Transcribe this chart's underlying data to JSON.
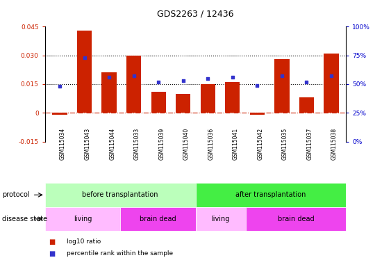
{
  "title": "GDS2263 / 12436",
  "samples": [
    "GSM115034",
    "GSM115043",
    "GSM115044",
    "GSM115033",
    "GSM115039",
    "GSM115040",
    "GSM115036",
    "GSM115041",
    "GSM115042",
    "GSM115035",
    "GSM115037",
    "GSM115038"
  ],
  "log10_ratio": [
    -0.001,
    0.043,
    0.021,
    0.03,
    0.011,
    0.01,
    0.015,
    0.016,
    -0.001,
    0.028,
    0.008,
    0.031
  ],
  "percentile_rank": [
    0.48,
    0.73,
    0.56,
    0.57,
    0.52,
    0.53,
    0.55,
    0.56,
    0.49,
    0.57,
    0.52,
    0.57
  ],
  "bar_color": "#cc2200",
  "dot_color": "#3333cc",
  "left_ylim": [
    -0.015,
    0.045
  ],
  "right_ylim": [
    0,
    1.0
  ],
  "left_yticks": [
    -0.015,
    0,
    0.015,
    0.03,
    0.045
  ],
  "right_yticks": [
    0,
    0.25,
    0.5,
    0.75,
    1.0
  ],
  "right_yticklabels": [
    "0%",
    "25%",
    "50%",
    "75%",
    "100%"
  ],
  "left_yticklabels": [
    "-0.015",
    "0",
    "0.015",
    "0.030",
    "0.045"
  ],
  "hline_vals": [
    0.015,
    0.03
  ],
  "hline_color": "black",
  "hline_style": "dotted",
  "zero_line_color": "#cc2200",
  "zero_line_style": "-.",
  "protocol_groups": [
    {
      "label": "before transplantation",
      "start": 0,
      "end": 6,
      "color": "#bbffbb"
    },
    {
      "label": "after transplantation",
      "start": 6,
      "end": 12,
      "color": "#44ee44"
    }
  ],
  "disease_groups": [
    {
      "label": "living",
      "start": 0,
      "end": 3,
      "color": "#ffbbff"
    },
    {
      "label": "brain dead",
      "start": 3,
      "end": 6,
      "color": "#ee44ee"
    },
    {
      "label": "living",
      "start": 6,
      "end": 8,
      "color": "#ffbbff"
    },
    {
      "label": "brain dead",
      "start": 8,
      "end": 12,
      "color": "#ee44ee"
    }
  ],
  "protocol_label": "protocol",
  "disease_label": "disease state",
  "legend_items": [
    {
      "label": "log10 ratio",
      "color": "#cc2200"
    },
    {
      "label": "percentile rank within the sample",
      "color": "#3333cc"
    }
  ],
  "bg_color": "#ffffff",
  "ax_bg_color": "#ffffff",
  "tick_bg_color": "#cccccc"
}
